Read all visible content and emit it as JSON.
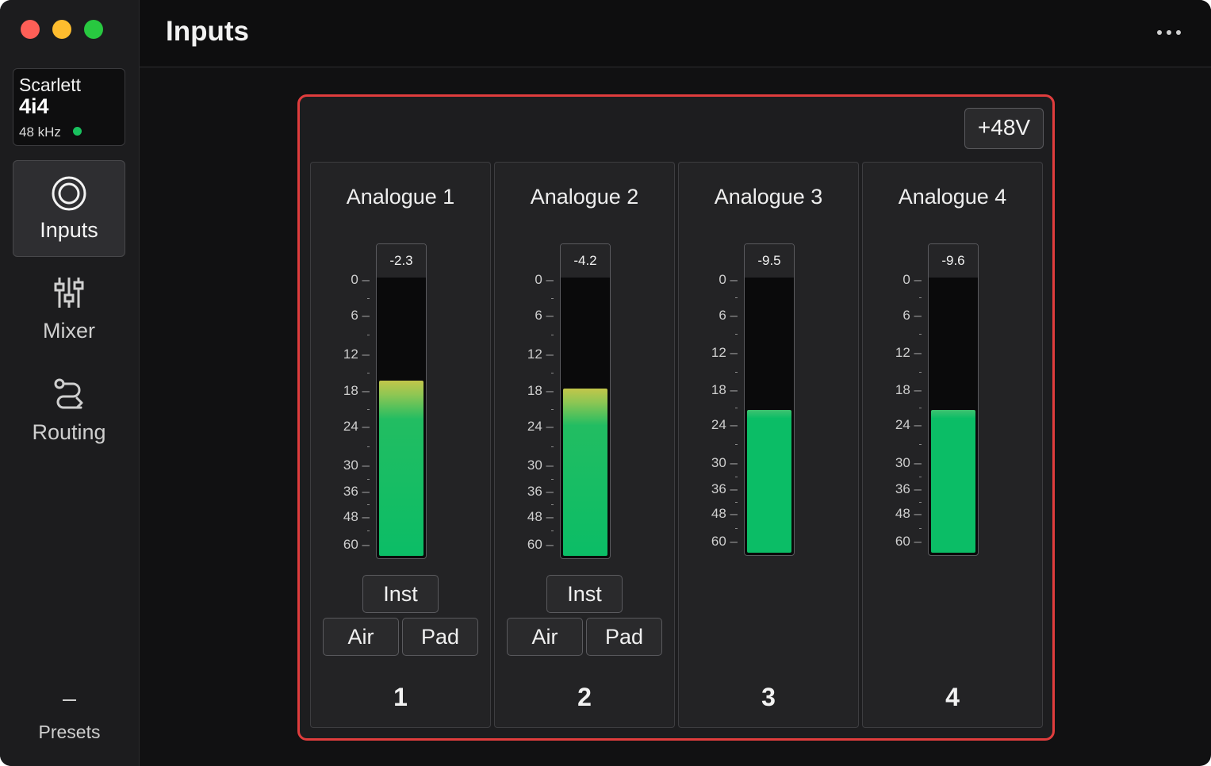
{
  "sidebar": {
    "device": {
      "brand": "Scarlett",
      "model": "4i4",
      "sample_rate": "48 kHz",
      "status_color": "#19c15e"
    },
    "nav": [
      {
        "label": "Inputs",
        "icon": "inputs-rings-icon",
        "active": true
      },
      {
        "label": "Mixer",
        "icon": "mixer-sliders-icon",
        "active": false
      },
      {
        "label": "Routing",
        "icon": "routing-path-icon",
        "active": false
      }
    ],
    "presets_label": "Presets",
    "presets_value": "–"
  },
  "header": {
    "title": "Inputs",
    "more_icon": "more-options-icon"
  },
  "panel": {
    "phantom_label": "+48V",
    "accent_color": "#e03d3d",
    "meter_scale": [
      "0",
      "6",
      "12",
      "18",
      "24",
      "30",
      "36",
      "48",
      "60"
    ],
    "channels": [
      {
        "name": "Analogue 1",
        "peak": "-2.3",
        "level": 0.62,
        "number": "1",
        "buttons": {
          "inst": "Inst",
          "air": "Air",
          "pad": "Pad"
        }
      },
      {
        "name": "Analogue 2",
        "peak": "-4.2",
        "level": 0.59,
        "number": "2",
        "buttons": {
          "inst": "Inst",
          "air": "Air",
          "pad": "Pad"
        }
      },
      {
        "name": "Analogue 3",
        "peak": "-9.5",
        "level": 0.51,
        "number": "3"
      },
      {
        "name": "Analogue 4",
        "peak": "-9.6",
        "level": 0.51,
        "number": "4"
      }
    ]
  }
}
